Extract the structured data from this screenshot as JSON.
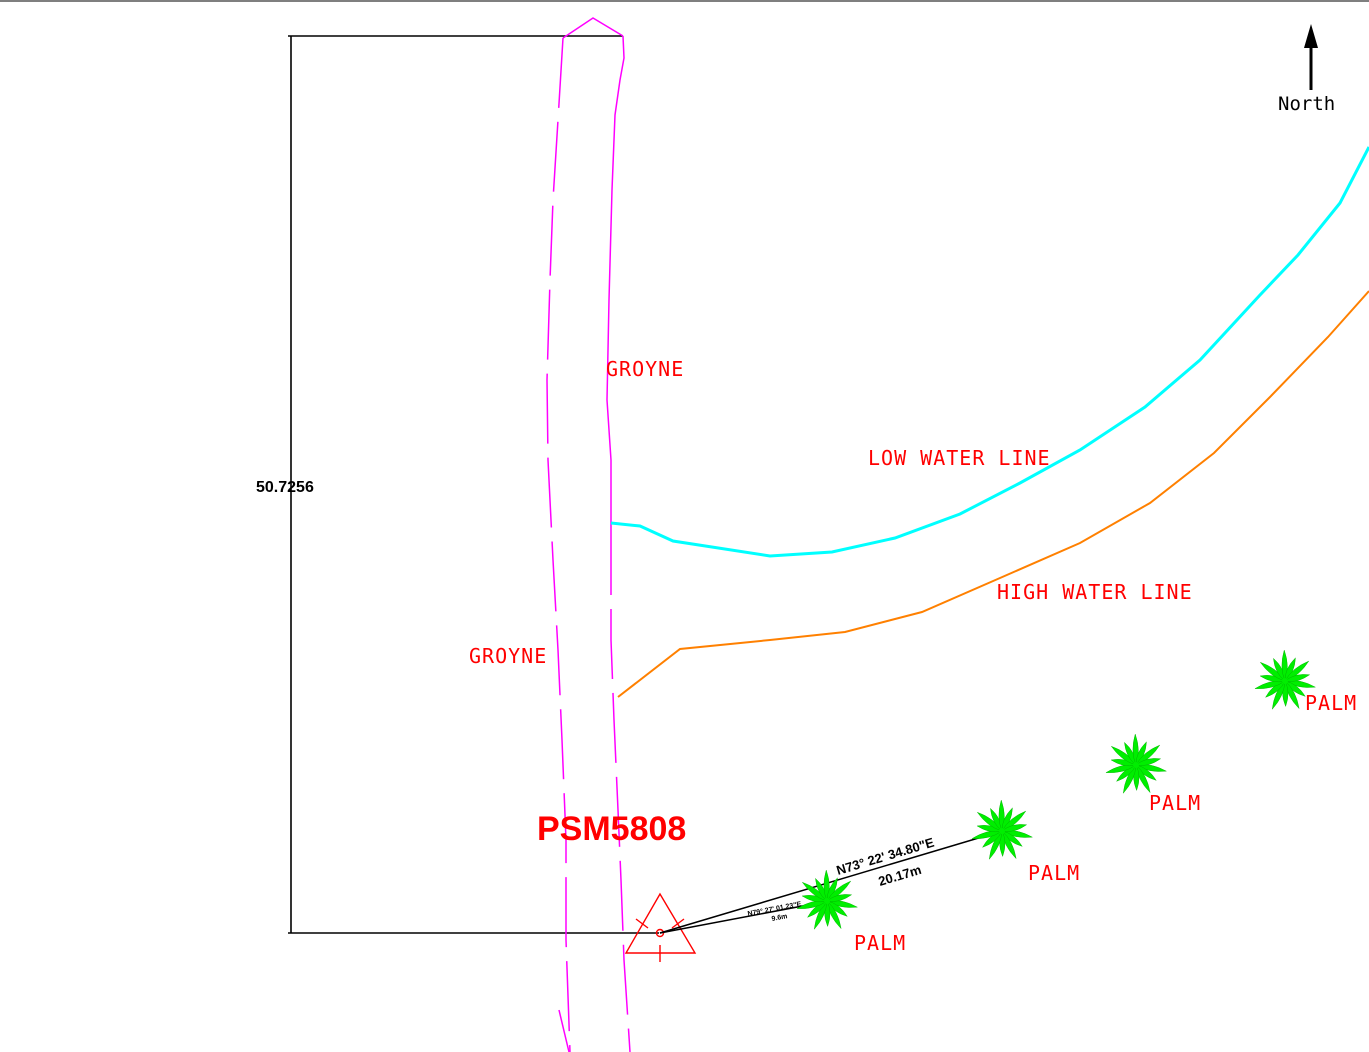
{
  "north": {
    "label": "North"
  },
  "survey_mark": {
    "label": "PSM5808"
  },
  "dimension": {
    "value": "50.7256"
  },
  "features": {
    "groyne_top": "GROYNE",
    "groyne_bottom": "GROYNE",
    "low_water_line": "LOW WATER LINE",
    "high_water_line": "HIGH WATER LINE"
  },
  "palms": [
    {
      "label": "PALM"
    },
    {
      "label": "PALM"
    },
    {
      "label": "PALM"
    },
    {
      "label": "PALM"
    }
  ],
  "bearings": {
    "long": {
      "bearing": "N73° 22' 34.80\"E",
      "distance": "20.17m"
    },
    "short": {
      "bearing": "N79° 27' 01.23\"E",
      "distance": "9.6m"
    }
  },
  "colors": {
    "groyne": "#ff00ff",
    "low_water_line": "#00ffff",
    "high_water_line": "#ff8000",
    "palm": "#00ee00",
    "text": "#ff0000",
    "linework": "#000000"
  }
}
